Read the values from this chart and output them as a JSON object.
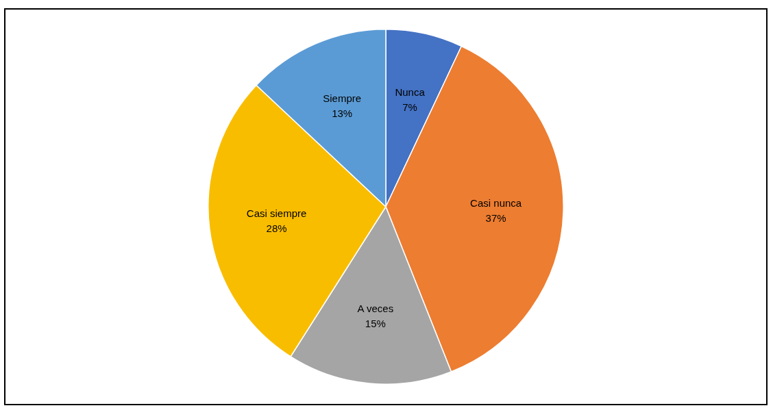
{
  "chart_data": {
    "type": "pie",
    "categories": [
      "Nunca",
      "Casi nunca",
      "A veces",
      "Casi siempre",
      "Siempre"
    ],
    "values": [
      7,
      37,
      15,
      28,
      13
    ],
    "value_labels": [
      "7%",
      "37%",
      "15%",
      "28%",
      "13%"
    ],
    "colors": [
      "#4472c4",
      "#ed7d31",
      "#a5a5a5",
      "#f9bd00",
      "#5b9bd5"
    ],
    "legend": false
  }
}
